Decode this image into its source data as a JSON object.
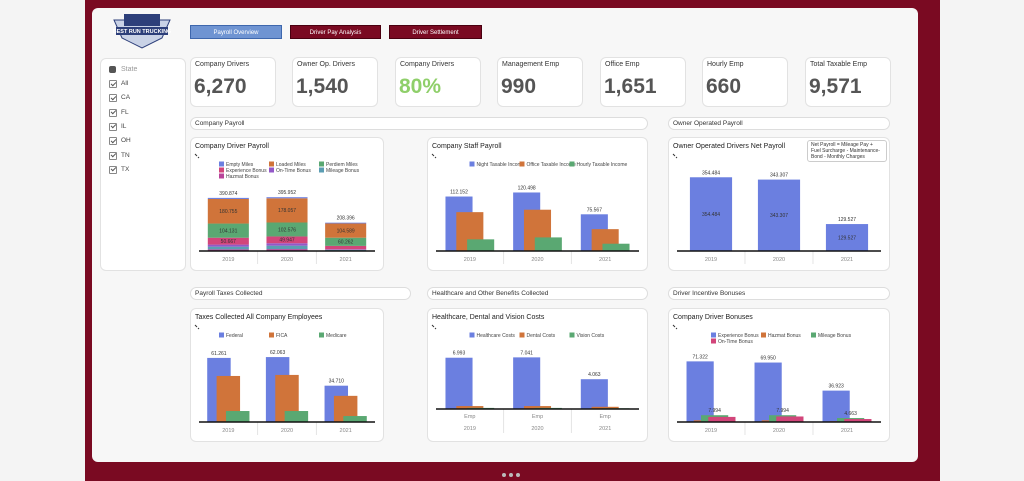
{
  "header": {
    "logo": "BEST RUN TRUCKING"
  },
  "tabs": [
    "Payroll Overview",
    "Driver Pay Analysis",
    "Driver Settlement"
  ],
  "filter": {
    "title": "State",
    "options": [
      "All",
      "CA",
      "FL",
      "IL",
      "OH",
      "TN",
      "TX"
    ]
  },
  "kpis": [
    {
      "label": "Company Drivers",
      "value": "6,270"
    },
    {
      "label": "Owner Op. Drivers",
      "value": "1,540"
    },
    {
      "label": "Company Drivers",
      "value": "80%",
      "color": "#8fcf6a"
    },
    {
      "label": "Management Emp",
      "value": "990"
    },
    {
      "label": "Office Emp",
      "value": "1,651"
    },
    {
      "label": "Hourly Emp",
      "value": "660"
    },
    {
      "label": "Total Taxable Emp",
      "value": "9,571"
    }
  ],
  "sections": [
    "Company Payroll",
    "Owner Operated Payroll",
    "Payroll Taxes Collected",
    "Healthcare and Other Benefits Collected",
    "Driver Incentive Bonuses"
  ],
  "chart_data": [
    {
      "type": "bar",
      "stacked": true,
      "title": "Company Driver Payroll",
      "categories": [
        "2019",
        "2020",
        "2021"
      ],
      "ylim": [
        0,
        500
      ],
      "total_labels": [
        "390.874",
        "395.952",
        "208.396"
      ],
      "series": [
        {
          "name": "Empty Miles",
          "color": "#6b7fe0",
          "values": [
            8,
            8,
            6
          ],
          "value_labels": [
            null,
            null,
            null
          ]
        },
        {
          "name": "Loaded Miles",
          "color": "#d0743a",
          "values": [
            180.755,
            178.057,
            104.589
          ],
          "value_labels": [
            "180.755",
            "178.057",
            "104.589"
          ]
        },
        {
          "name": "Perdiem Miles",
          "color": "#5aa872",
          "values": [
            104.131,
            102.576,
            60.262
          ],
          "value_labels": [
            "104.131",
            "102.576",
            "60.262"
          ]
        },
        {
          "name": "Experience Bonus",
          "color": "#d2457a",
          "values": [
            50.667,
            49.947,
            25
          ],
          "value_labels": [
            "50.667",
            "49.947",
            null
          ]
        },
        {
          "name": "On-Time Bonus",
          "color": "#9358c8",
          "values": [
            15,
            18,
            4
          ],
          "value_labels": [
            null,
            null,
            null
          ]
        },
        {
          "name": "Mileage Bonus",
          "color": "#5b9db3",
          "values": [
            20,
            25,
            5
          ],
          "value_labels": [
            null,
            null,
            null
          ]
        },
        {
          "name": "Hazmat Bonus",
          "color": "#b8449a",
          "values": [
            12,
            14,
            3.5
          ],
          "value_labels": [
            null,
            null,
            null
          ]
        }
      ]
    },
    {
      "type": "bar",
      "title": "Company Staff Payroll",
      "categories": [
        "2019",
        "2020",
        "2021"
      ],
      "ylim": [
        0,
        140
      ],
      "series": [
        {
          "name": "Night Taxable Income",
          "color": "#6b7fe0",
          "values": [
            112.152,
            120.498,
            75.567
          ],
          "value_labels": [
            "112.152",
            "120.498",
            "75.567"
          ]
        },
        {
          "name": "Office Taxable Income",
          "color": "#d0743a",
          "values": [
            80,
            85,
            45
          ],
          "value_labels": [
            null,
            null,
            null
          ]
        },
        {
          "name": "Hourly Taxable Income",
          "color": "#5aa872",
          "values": [
            24,
            28,
            15
          ],
          "value_labels": [
            null,
            null,
            null
          ]
        }
      ]
    },
    {
      "type": "bar",
      "inside_labels": true,
      "title": "Owner Operated Drivers Net Payroll",
      "annotation": "Net Payroll = Mileage Pay + Fuel Surcharge - Maintenance- Bond - Monthly Charges",
      "categories": [
        "2019",
        "2020",
        "2021"
      ],
      "ylim": [
        0,
        375
      ],
      "series": [
        {
          "color": "#6b7fe0",
          "values": [
            354.484,
            343.307,
            129.527
          ],
          "value_labels": [
            "354.484",
            "343.307",
            "129.527"
          ]
        }
      ]
    },
    {
      "type": "bar",
      "title": "Taxes Collected All Company Employees",
      "categories": [
        "2019",
        "2020",
        "2021"
      ],
      "ylim": [
        0,
        65
      ],
      "series": [
        {
          "name": "Federal",
          "color": "#6b7fe0",
          "values": [
            61.261,
            62.063,
            34.71
          ],
          "value_labels": [
            "61.261",
            "62.063",
            "34.710"
          ]
        },
        {
          "name": "FICA",
          "color": "#d0743a",
          "values": [
            44,
            45,
            25
          ],
          "value_labels": [
            null,
            null,
            null
          ]
        },
        {
          "name": "Medicare",
          "color": "#5aa872",
          "values": [
            10.5,
            10.5,
            5.7
          ],
          "value_labels": [
            null,
            null,
            null
          ]
        }
      ]
    },
    {
      "type": "bar",
      "title": "Healthcare, Dental and Vision Costs",
      "categories": [
        "2019",
        "2020",
        "2021"
      ],
      "subcategories": [
        "Emp",
        "Emp",
        "Emp"
      ],
      "ylim": [
        0,
        7.5
      ],
      "series": [
        {
          "name": "Healthcare Costs",
          "color": "#6b7fe0",
          "values": [
            6.993,
            7.041,
            4.063
          ],
          "value_labels": [
            "6.993",
            "7.041",
            "4.063"
          ]
        },
        {
          "name": "Dental Costs",
          "color": "#d0743a",
          "values": [
            0.4,
            0.4,
            0.3
          ],
          "value_labels": [
            null,
            null,
            null
          ]
        },
        {
          "name": "Vision Costs",
          "color": "#5aa872",
          "values": [
            0.15,
            0.15,
            0.1
          ],
          "value_labels": [
            null,
            null,
            null
          ]
        }
      ]
    },
    {
      "type": "bar",
      "title": "Company Driver Bonuses",
      "categories": [
        "2019",
        "2020",
        "2021"
      ],
      "ylim": [
        0,
        80
      ],
      "series": [
        {
          "name": "Experience Bonus",
          "color": "#6b7fe0",
          "values": [
            71.322,
            69.95,
            36.923
          ],
          "value_labels": [
            "71.322",
            "69.950",
            "36.923"
          ]
        },
        {
          "name": "Hazmat Bonus",
          "color": "#d0743a",
          "values": [
            2,
            2,
            1
          ],
          "value_labels": [
            null,
            null,
            null
          ]
        },
        {
          "name": "Mileage Bonus",
          "color": "#5aa872",
          "values": [
            7.994,
            7.994,
            4.663
          ],
          "value_labels": [
            "7.994",
            "7.994",
            "4.663"
          ]
        },
        {
          "name": "On-Time Bonus",
          "color": "#d2457a",
          "values": [
            6,
            6.5,
            3.5
          ],
          "value_labels": [
            null,
            null,
            null
          ]
        }
      ]
    }
  ]
}
